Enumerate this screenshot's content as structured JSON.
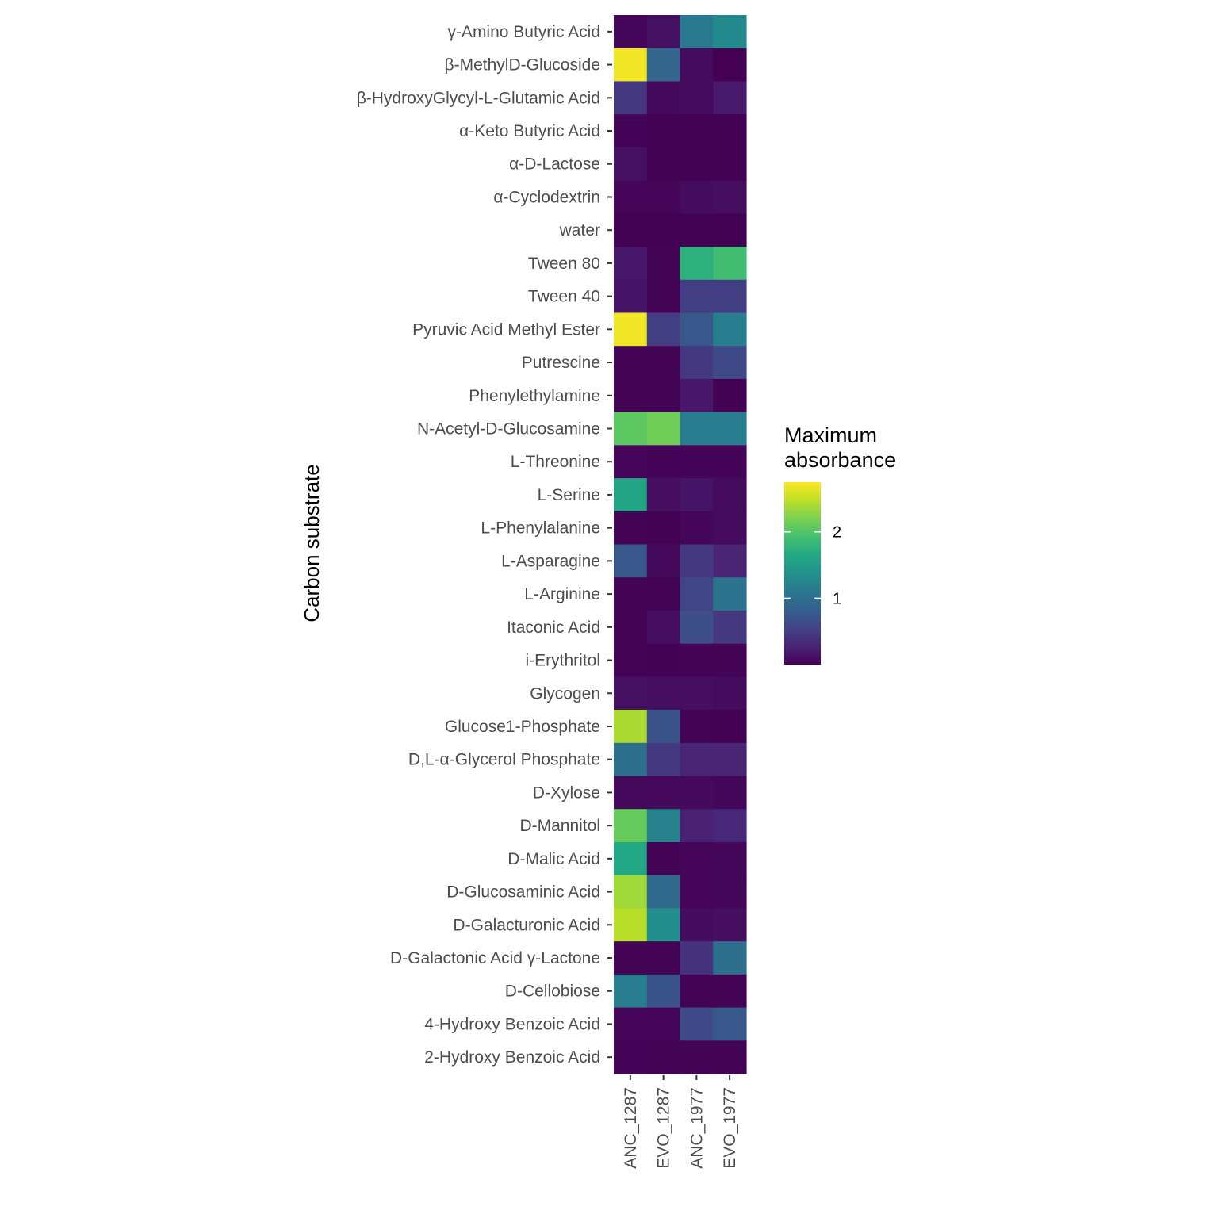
{
  "chart_data": {
    "type": "heatmap",
    "xlabel": "",
    "ylabel": "Carbon substrate",
    "x": [
      "ANC_1287",
      "EVO_1287",
      "ANC_1977",
      "EVO_1977"
    ],
    "y": [
      "γ-Amino Butyric Acid",
      "β-MethylD-Glucoside",
      "β-HydroxyGlycyl-L-Glutamic Acid",
      "α-Keto Butyric Acid",
      "α-D-Lactose",
      "α-Cyclodextrin",
      "water",
      "Tween 80",
      "Tween 40",
      "Pyruvic Acid Methyl Ester",
      "Putrescine",
      "Phenylethylamine",
      "N-Acetyl-D-Glucosamine",
      "L-Threonine",
      "L-Serine",
      "L-Phenylalanine",
      "L-Asparagine",
      "L-Arginine",
      "Itaconic Acid",
      "i-Erythritol",
      "Glycogen",
      "Glucose1-Phosphate",
      "D,L-α-Glycerol Phosphate",
      "D-Xylose",
      "D-Mannitol",
      "D-Malic Acid",
      "D-Glucosaminic Acid",
      "D-Galacturonic Acid",
      "D-Galactonic Acid γ-Lactone",
      "D-Cellobiose",
      "4-Hydroxy Benzoic Acid",
      "2-Hydroxy Benzoic Acid"
    ],
    "values": [
      [
        0.05,
        0.12,
        1.1,
        1.3
      ],
      [
        2.7,
        0.9,
        0.08,
        0.0
      ],
      [
        0.45,
        0.06,
        0.08,
        0.2
      ],
      [
        0.03,
        0.01,
        0.01,
        0.01
      ],
      [
        0.12,
        0.01,
        0.01,
        0.01
      ],
      [
        0.04,
        0.04,
        0.08,
        0.1
      ],
      [
        0.01,
        0.01,
        0.01,
        0.01
      ],
      [
        0.18,
        0.02,
        1.75,
        1.9
      ],
      [
        0.15,
        0.02,
        0.5,
        0.5
      ],
      [
        2.7,
        0.5,
        0.75,
        1.15
      ],
      [
        0.02,
        0.02,
        0.45,
        0.6
      ],
      [
        0.02,
        0.02,
        0.18,
        0.01
      ],
      [
        2.05,
        2.15,
        1.15,
        1.15
      ],
      [
        0.04,
        0.03,
        0.03,
        0.03
      ],
      [
        1.6,
        0.1,
        0.15,
        0.08
      ],
      [
        0.02,
        0.01,
        0.04,
        0.08
      ],
      [
        0.75,
        0.06,
        0.45,
        0.28
      ],
      [
        0.02,
        0.02,
        0.55,
        1.05
      ],
      [
        0.02,
        0.1,
        0.65,
        0.45
      ],
      [
        0.02,
        0.01,
        0.02,
        0.02
      ],
      [
        0.12,
        0.1,
        0.1,
        0.08
      ],
      [
        2.4,
        0.7,
        0.02,
        0.01
      ],
      [
        1.0,
        0.45,
        0.28,
        0.28
      ],
      [
        0.06,
        0.06,
        0.07,
        0.05
      ],
      [
        2.1,
        1.2,
        0.25,
        0.3
      ],
      [
        1.65,
        0.02,
        0.04,
        0.05
      ],
      [
        2.35,
        0.95,
        0.04,
        0.05
      ],
      [
        2.45,
        1.35,
        0.08,
        0.1
      ],
      [
        0.02,
        0.02,
        0.4,
        1.0
      ],
      [
        1.15,
        0.7,
        0.02,
        0.02
      ],
      [
        0.04,
        0.04,
        0.6,
        0.75
      ],
      [
        0.03,
        0.02,
        0.02,
        0.02
      ]
    ],
    "legend": {
      "title_line1": "Maximum",
      "title_line2": "absorbance",
      "ticks": [
        1,
        2
      ],
      "tick_labels": [
        "1",
        "2"
      ],
      "min": 0,
      "max": 2.75,
      "placement": "right"
    },
    "colormap": "viridis",
    "grid": false
  }
}
